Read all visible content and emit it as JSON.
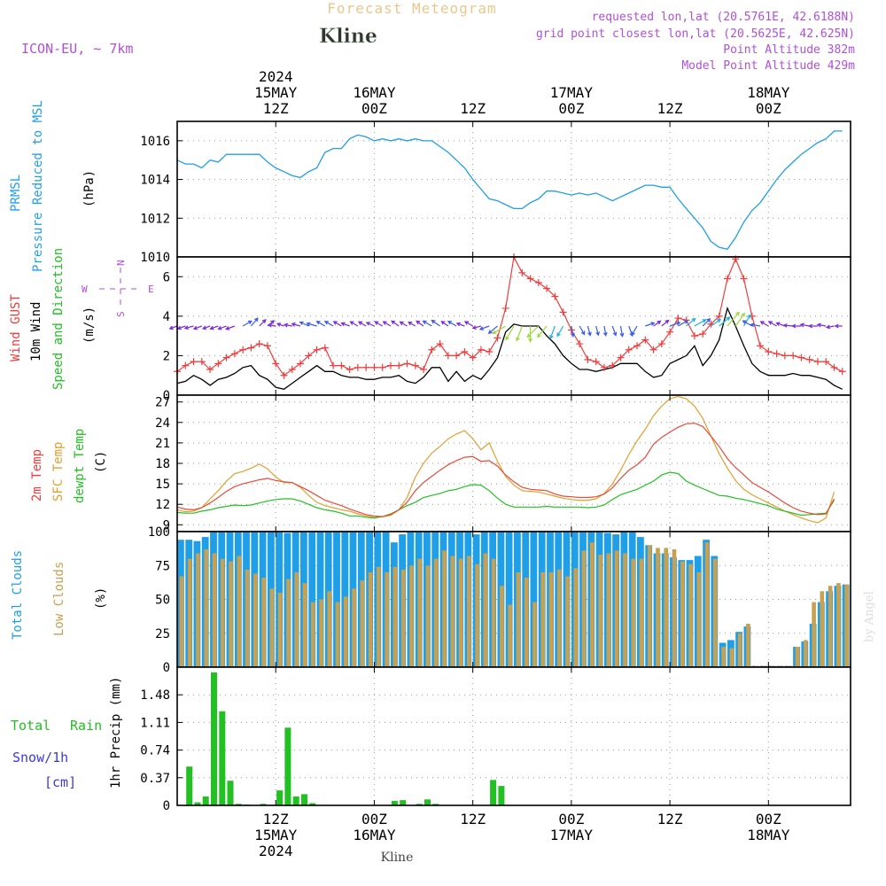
{
  "header": {
    "product_title": "Forecast Meteogram",
    "location": "Kline",
    "model": "ICON-EU, ~ 7km",
    "requested": "requested lon,lat (20.5761E, 42.6188N)",
    "grid_point": "grid point closest lon,lat (20.5625E, 42.625N)",
    "point_altitude": "Point Altitude 382m",
    "model_altitude": "Model Point Altitude 429m",
    "footer_location": "Kline",
    "watermark": "by Angel"
  },
  "time_axis": {
    "start_hour": 0,
    "end_hour": 82,
    "top_labels": [
      {
        "hour": 12,
        "lines": [
          "2024",
          "15MAY",
          "12Z"
        ]
      },
      {
        "hour": 24,
        "lines": [
          "16MAY",
          "00Z"
        ]
      },
      {
        "hour": 36,
        "lines": [
          "12Z"
        ]
      },
      {
        "hour": 48,
        "lines": [
          "17MAY",
          "00Z"
        ]
      },
      {
        "hour": 60,
        "lines": [
          "12Z"
        ]
      },
      {
        "hour": 72,
        "lines": [
          "18MAY",
          "00Z"
        ]
      }
    ],
    "bottom_labels": [
      {
        "hour": 12,
        "lines": [
          "12Z",
          "15MAY",
          "2024"
        ]
      },
      {
        "hour": 24,
        "lines": [
          "00Z",
          "16MAY"
        ]
      },
      {
        "hour": 36,
        "lines": [
          "12Z"
        ]
      },
      {
        "hour": 48,
        "lines": [
          "00Z",
          "17MAY"
        ]
      },
      {
        "hour": 60,
        "lines": [
          "12Z"
        ]
      },
      {
        "hour": 72,
        "lines": [
          "00Z",
          "18MAY"
        ]
      }
    ]
  },
  "panels_text": {
    "pressure": {
      "label1": "PRMSL",
      "label2": "Pressure Reduced to MSL",
      "unit": "(hPa)"
    },
    "wind": {
      "label_gust": "Wind GUST",
      "label_wind": "10m Wind",
      "label_dir": "Speed and Direction",
      "unit": "(m/s)",
      "compass_n": "N",
      "compass_s": "S",
      "compass_e": "E",
      "compass_w": "W"
    },
    "temp": {
      "label1": "2m Temp",
      "label2": "SFC Temp",
      "label3": "dewpt Temp",
      "unit": "(C)"
    },
    "clouds": {
      "label1": "Total Clouds",
      "label2": "Low Clouds",
      "unit": "(%)"
    },
    "precip": {
      "label1": "Total",
      "label1b": "Rain",
      "label2": "Snow/1h",
      "label3": "[cm]",
      "unit": "1hr Precip (mm)"
    }
  },
  "colors": {
    "pressure": "#1f9fe8",
    "gust": "#f03c3c",
    "wind": "#000000",
    "temp2m": "#e84a3a",
    "tempsfc": "#e0a030",
    "dewpt": "#22c022",
    "total_clouds": "#1f9fe8",
    "low_clouds": "#c8a050",
    "rain": "#22c022",
    "snow": "#3a3adc",
    "title": "#e8c88a",
    "meta": "#b050d8"
  },
  "chart_data": [
    {
      "type": "line",
      "name": "pressure",
      "x": [
        0,
        1,
        2,
        3,
        4,
        5,
        6,
        7,
        8,
        9,
        10,
        11,
        12,
        13,
        14,
        15,
        16,
        17,
        18,
        19,
        20,
        21,
        22,
        23,
        24,
        25,
        26,
        27,
        28,
        29,
        30,
        31,
        32,
        33,
        34,
        35,
        36,
        37,
        38,
        39,
        40,
        41,
        42,
        43,
        44,
        45,
        46,
        47,
        48,
        49,
        50,
        51,
        52,
        53,
        54,
        55,
        56,
        57,
        58,
        59,
        60,
        61,
        62,
        63,
        64,
        65,
        66,
        67,
        68,
        69,
        70,
        71,
        72,
        73,
        74,
        75,
        76,
        77,
        78,
        79,
        80,
        81
      ],
      "values": [
        1015.0,
        1014.8,
        1014.8,
        1014.6,
        1015.0,
        1014.9,
        1015.3,
        1015.3,
        1015.3,
        1015.3,
        1015.3,
        1014.9,
        1014.6,
        1014.4,
        1014.2,
        1014.1,
        1014.4,
        1014.6,
        1015.4,
        1015.6,
        1015.6,
        1016.1,
        1016.3,
        1016.2,
        1016.0,
        1016.1,
        1016.0,
        1016.1,
        1016.0,
        1016.1,
        1016.0,
        1016.0,
        1015.7,
        1015.4,
        1015.0,
        1014.6,
        1014.0,
        1013.5,
        1013.0,
        1012.9,
        1012.7,
        1012.5,
        1012.5,
        1012.8,
        1013.0,
        1013.4,
        1013.4,
        1013.3,
        1013.2,
        1013.3,
        1013.2,
        1013.3,
        1013.1,
        1012.9,
        1013.1,
        1013.3,
        1013.5,
        1013.7,
        1013.7,
        1013.6,
        1013.6,
        1013.0,
        1012.5,
        1012.0,
        1011.5,
        1010.8,
        1010.5,
        1010.4,
        1011.0,
        1011.8,
        1012.4,
        1012.8,
        1013.4,
        1014.0,
        1014.5,
        1014.9,
        1015.3,
        1015.6,
        1015.9,
        1016.1,
        1016.5,
        1016.5
      ],
      "ylim": [
        1010,
        1017
      ],
      "yticks": [
        1010,
        1012,
        1014,
        1016
      ]
    },
    {
      "type": "line",
      "name": "wind",
      "x": [
        0,
        1,
        2,
        3,
        4,
        5,
        6,
        7,
        8,
        9,
        10,
        11,
        12,
        13,
        14,
        15,
        16,
        17,
        18,
        19,
        20,
        21,
        22,
        23,
        24,
        25,
        26,
        27,
        28,
        29,
        30,
        31,
        32,
        33,
        34,
        35,
        36,
        37,
        38,
        39,
        40,
        41,
        42,
        43,
        44,
        45,
        46,
        47,
        48,
        49,
        50,
        51,
        52,
        53,
        54,
        55,
        56,
        57,
        58,
        59,
        60,
        61,
        62,
        63,
        64,
        65,
        66,
        67,
        68,
        69,
        70,
        71,
        72,
        73,
        74,
        75,
        76,
        77,
        78,
        79,
        80,
        81
      ],
      "gust": [
        1.2,
        1.5,
        1.7,
        1.7,
        1.3,
        1.6,
        1.9,
        2.1,
        2.3,
        2.4,
        2.6,
        2.5,
        1.6,
        1.0,
        1.3,
        1.6,
        2.0,
        2.3,
        2.4,
        1.5,
        1.5,
        1.3,
        1.4,
        1.4,
        1.4,
        1.4,
        1.5,
        1.5,
        1.6,
        1.5,
        1.3,
        2.3,
        2.6,
        2.0,
        2.0,
        2.2,
        1.9,
        2.3,
        2.2,
        2.9,
        4.4,
        7.0,
        6.2,
        5.9,
        5.7,
        5.4,
        5.0,
        4.2,
        3.3,
        2.6,
        1.8,
        1.7,
        1.4,
        1.5,
        1.9,
        2.3,
        2.5,
        2.8,
        2.3,
        2.6,
        3.2,
        3.9,
        3.8,
        3.0,
        3.1,
        3.6,
        4.0,
        5.9,
        6.9,
        5.9,
        4.0,
        2.5,
        2.2,
        2.1,
        2.0,
        2.0,
        1.9,
        1.8,
        1.7,
        1.7,
        1.4,
        1.2
      ],
      "speed": [
        0.6,
        0.7,
        1.0,
        0.8,
        0.5,
        0.8,
        0.9,
        1.1,
        1.4,
        1.5,
        1.0,
        0.8,
        0.4,
        0.3,
        0.6,
        0.9,
        1.2,
        1.5,
        1.2,
        1.2,
        1.0,
        0.9,
        0.9,
        0.8,
        0.8,
        0.9,
        0.9,
        1.0,
        0.7,
        0.6,
        0.9,
        1.4,
        1.4,
        0.7,
        1.2,
        0.7,
        1.0,
        0.8,
        1.3,
        1.9,
        3.2,
        3.6,
        3.5,
        3.5,
        3.5,
        3.0,
        2.6,
        2.0,
        1.6,
        1.3,
        1.3,
        1.2,
        1.3,
        1.4,
        1.6,
        1.6,
        1.6,
        1.2,
        0.9,
        1.0,
        1.6,
        1.8,
        2.0,
        2.5,
        1.5,
        2.0,
        2.8,
        4.4,
        3.5,
        2.5,
        1.6,
        1.2,
        1.0,
        1.0,
        1.0,
        1.1,
        1.0,
        1.0,
        0.9,
        0.8,
        0.5,
        0.3
      ],
      "dir_to_deg": [
        250,
        250,
        255,
        250,
        250,
        250,
        250,
        250,
        60,
        40,
        45,
        50,
        280,
        290,
        280,
        285,
        295,
        285,
        300,
        300,
        300,
        290,
        300,
        300,
        295,
        300,
        300,
        305,
        300,
        300,
        305,
        300,
        305,
        305,
        300,
        290,
        300,
        255,
        250,
        230,
        240,
        210,
        200,
        180,
        225,
        220,
        200,
        210,
        170,
        150,
        165,
        165,
        170,
        160,
        170,
        160,
        210,
        70,
        55,
        50,
        70,
        60,
        50,
        60,
        45,
        55,
        50,
        40,
        35,
        30,
        300,
        280,
        300,
        300,
        290,
        275,
        270,
        280,
        270,
        280,
        260,
        270
      ],
      "ylim": [
        0,
        7
      ],
      "yticks": [
        0,
        2,
        4,
        6
      ]
    },
    {
      "type": "line",
      "name": "temperature",
      "x": [
        0,
        1,
        2,
        3,
        4,
        5,
        6,
        7,
        8,
        9,
        10,
        11,
        12,
        13,
        14,
        15,
        16,
        17,
        18,
        19,
        20,
        21,
        22,
        23,
        24,
        25,
        26,
        27,
        28,
        29,
        30,
        31,
        32,
        33,
        34,
        35,
        36,
        37,
        38,
        39,
        40,
        41,
        42,
        43,
        44,
        45,
        46,
        47,
        48,
        49,
        50,
        51,
        52,
        53,
        54,
        55,
        56,
        57,
        58,
        59,
        60,
        61,
        62,
        63,
        64,
        65,
        66,
        67,
        68,
        69,
        70,
        71,
        72,
        73,
        74,
        75,
        76,
        77,
        78,
        79,
        80,
        81
      ],
      "temp_2m": [
        11.6,
        11.3,
        11.2,
        11.5,
        12.2,
        13.0,
        13.9,
        14.6,
        15.0,
        15.3,
        15.6,
        15.8,
        15.5,
        15.3,
        15.2,
        14.6,
        14.0,
        13.3,
        12.6,
        12.2,
        11.8,
        11.3,
        10.9,
        10.5,
        10.3,
        10.2,
        10.5,
        11.2,
        12.3,
        14.0,
        15.2,
        16.1,
        17.0,
        17.8,
        18.4,
        18.9,
        19.0,
        18.3,
        18.4,
        17.6,
        16.3,
        15.3,
        14.5,
        14.2,
        14.1,
        14.0,
        13.5,
        13.2,
        13.1,
        13.0,
        13.0,
        13.1,
        13.5,
        14.4,
        15.8,
        17.0,
        17.8,
        18.9,
        20.8,
        21.8,
        22.6,
        23.3,
        23.8,
        23.9,
        23.4,
        22.0,
        20.5,
        18.7,
        17.4,
        16.3,
        15.2,
        14.5,
        13.8,
        13.0,
        12.2,
        11.5,
        11.0,
        10.7,
        10.5,
        10.6,
        12.8
      ],
      "temp_sfc": [
        11.2,
        10.9,
        11.0,
        11.5,
        12.8,
        14.0,
        15.4,
        16.5,
        16.8,
        17.3,
        17.9,
        17.2,
        16.0,
        15.2,
        15.2,
        14.5,
        13.3,
        12.3,
        11.8,
        11.5,
        11.2,
        11.0,
        10.6,
        10.3,
        10.1,
        10.2,
        10.4,
        11.2,
        13.0,
        16.0,
        18.0,
        19.5,
        20.5,
        21.6,
        22.3,
        22.8,
        21.6,
        20.0,
        21.0,
        18.3,
        16.1,
        14.8,
        14.0,
        13.9,
        13.8,
        13.5,
        13.2,
        12.9,
        12.7,
        12.6,
        12.6,
        12.8,
        13.6,
        15.0,
        17.0,
        19.3,
        21.3,
        23.0,
        25.0,
        26.4,
        27.5,
        27.8,
        27.5,
        26.4,
        24.6,
        22.0,
        19.4,
        17.3,
        15.5,
        14.2,
        13.4,
        12.8,
        12.2,
        11.6,
        11.0,
        10.5,
        10.0,
        9.6,
        9.3,
        10.0,
        13.8
      ],
      "dewpt": [
        10.8,
        10.7,
        10.7,
        11.0,
        11.2,
        11.5,
        11.7,
        11.9,
        11.8,
        11.9,
        12.2,
        12.5,
        12.7,
        12.8,
        12.8,
        12.5,
        12.0,
        11.5,
        11.2,
        11.0,
        10.7,
        10.3,
        10.3,
        10.1,
        10.0,
        10.2,
        10.6,
        11.2,
        11.8,
        12.3,
        13.0,
        13.3,
        13.6,
        14.0,
        14.2,
        14.6,
        14.9,
        14.8,
        14.0,
        12.9,
        12.0,
        11.6,
        11.6,
        11.6,
        11.6,
        11.7,
        11.6,
        11.6,
        11.6,
        11.6,
        11.5,
        11.6,
        11.9,
        12.7,
        13.4,
        13.8,
        14.2,
        14.8,
        15.4,
        16.3,
        16.7,
        16.5,
        15.4,
        14.8,
        14.3,
        13.8,
        13.3,
        13.2,
        12.9,
        12.7,
        12.4,
        12.1,
        11.8,
        11.3,
        11.0,
        10.7,
        10.4,
        10.5,
        10.6,
        10.7,
        12.6
      ],
      "ylim": [
        8,
        28
      ],
      "yticks": [
        9,
        12,
        15,
        18,
        21,
        24,
        27
      ]
    },
    {
      "type": "bar",
      "name": "clouds",
      "x": [
        0,
        1,
        2,
        3,
        4,
        5,
        6,
        7,
        8,
        9,
        10,
        11,
        12,
        13,
        14,
        15,
        16,
        17,
        18,
        19,
        20,
        21,
        22,
        23,
        24,
        25,
        26,
        27,
        28,
        29,
        30,
        31,
        32,
        33,
        34,
        35,
        36,
        37,
        38,
        39,
        40,
        41,
        42,
        43,
        44,
        45,
        46,
        47,
        48,
        49,
        50,
        51,
        52,
        53,
        54,
        55,
        56,
        57,
        58,
        59,
        60,
        61,
        62,
        63,
        64,
        65,
        66,
        67,
        68,
        69,
        70,
        71,
        72,
        73,
        74,
        75,
        76,
        77,
        78,
        79,
        80,
        81
      ],
      "total": [
        94,
        94,
        93,
        96,
        100,
        100,
        100,
        100,
        100,
        100,
        100,
        100,
        100,
        99,
        100,
        100,
        100,
        100,
        100,
        100,
        100,
        100,
        100,
        100,
        100,
        100,
        92,
        98,
        100,
        100,
        100,
        100,
        100,
        100,
        100,
        100,
        98,
        100,
        100,
        100,
        100,
        100,
        100,
        100,
        100,
        100,
        100,
        100,
        100,
        100,
        100,
        100,
        99,
        98,
        100,
        100,
        96,
        90,
        84,
        84,
        81,
        79,
        79,
        82,
        94,
        82,
        18,
        20,
        26,
        30,
        1,
        1,
        1,
        1,
        1,
        15,
        19,
        32,
        48,
        56,
        60,
        61
      ],
      "low": [
        67,
        80,
        84,
        87,
        84,
        80,
        78,
        82,
        72,
        69,
        66,
        58,
        55,
        65,
        70,
        62,
        48,
        50,
        56,
        48,
        52,
        58,
        64,
        70,
        74,
        70,
        74,
        72,
        75,
        80,
        75,
        80,
        86,
        82,
        80,
        82,
        76,
        84,
        80,
        60,
        46,
        70,
        66,
        48,
        70,
        70,
        72,
        67,
        73,
        86,
        92,
        83,
        84,
        86,
        84,
        80,
        80,
        90,
        88,
        88,
        87,
        78,
        76,
        70,
        92,
        80,
        15,
        14,
        25,
        32,
        1,
        1,
        1,
        1,
        1,
        15,
        20,
        48,
        56,
        60,
        62,
        61
      ],
      "ylim": [
        0,
        100
      ],
      "yticks": [
        0,
        25,
        50,
        75,
        100
      ]
    },
    {
      "type": "bar",
      "name": "precip",
      "x": [
        0,
        1,
        2,
        3,
        4,
        5,
        6,
        7,
        8,
        9,
        10,
        11,
        12,
        13,
        14,
        15,
        16,
        17,
        18,
        19,
        20,
        21,
        22,
        23,
        24,
        25,
        26,
        27,
        28,
        29,
        30,
        31,
        32,
        33,
        34,
        35,
        36,
        37,
        38,
        39,
        40,
        41,
        42,
        43,
        44,
        45,
        46,
        47,
        48,
        49,
        50,
        51,
        52,
        53,
        54,
        55,
        56,
        57,
        58,
        59,
        60,
        61,
        62,
        63,
        64,
        65,
        66,
        67,
        68,
        69,
        70,
        71,
        72,
        73,
        74,
        75,
        76,
        77,
        78,
        79,
        80,
        81
      ],
      "rain": [
        0,
        0.52,
        0.04,
        0.12,
        1.78,
        1.26,
        0.33,
        0.02,
        0.01,
        0,
        0.02,
        0.01,
        0.2,
        1.04,
        0.12,
        0.15,
        0.03,
        0,
        0,
        0,
        0,
        0,
        0,
        0,
        0,
        0,
        0.06,
        0.07,
        0,
        0.02,
        0.08,
        0.02,
        0,
        0,
        0,
        0,
        0,
        0,
        0.34,
        0.26,
        0,
        0,
        0,
        0,
        0,
        0,
        0,
        0,
        0,
        0,
        0,
        0,
        0,
        0,
        0,
        0,
        0,
        0,
        0,
        0,
        0,
        0,
        0,
        0,
        0,
        0,
        0,
        0,
        0,
        0,
        0,
        0,
        0,
        0,
        0,
        0,
        0,
        0,
        0,
        0,
        0,
        0
      ],
      "ylim": [
        0,
        1.85
      ],
      "yticks": [
        0,
        0.37,
        0.74,
        1.11,
        1.48
      ]
    }
  ]
}
